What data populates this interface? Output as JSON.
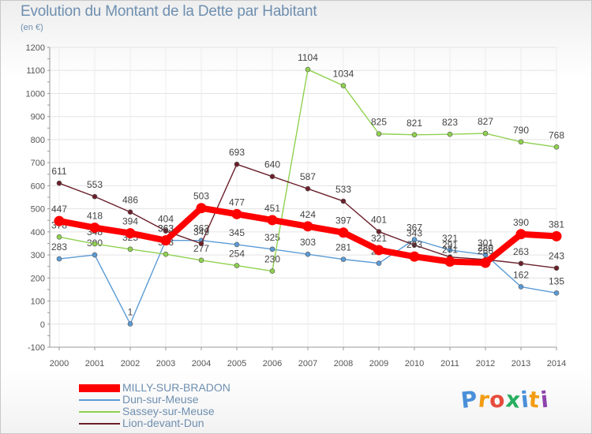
{
  "title": "Evolution du Montant de la Dette par Habitant",
  "unit_label": "(en €)",
  "chart_data": {
    "type": "line",
    "title": "Evolution du Montant de la Dette par Habitant",
    "ylabel": "(en €)",
    "xlabel": "",
    "x": [
      "2000",
      "2001",
      "2002",
      "2003",
      "2004",
      "2005",
      "2006",
      "2007",
      "2008",
      "2009",
      "2010",
      "2011",
      "2012",
      "2013",
      "2014"
    ],
    "ylim": [
      -100,
      1200
    ],
    "yticks": [
      -100,
      0,
      100,
      200,
      300,
      400,
      500,
      600,
      700,
      800,
      900,
      1000,
      1100,
      1200
    ],
    "grid": true,
    "legend_position": "bottom-left",
    "series": [
      {
        "name": "MILLY-SUR-BRADON",
        "color": "#ff0000",
        "values": [
          447,
          418,
          394,
          363,
          503,
          477,
          451,
          424,
          397,
          321,
          293,
          271,
          266,
          390,
          381
        ]
      },
      {
        "name": "Dun-sur-Meuse",
        "color": "#5b9bd5",
        "values": [
          283,
          300,
          1,
          363,
          363,
          345,
          325,
          303,
          281,
          264,
          367,
          321,
          301,
          162,
          135
        ]
      },
      {
        "name": "Sassey-sur-Meuse",
        "color": "#8fd14f",
        "values": [
          378,
          348,
          325,
          303,
          277,
          254,
          230,
          1104,
          1034,
          825,
          821,
          823,
          827,
          790,
          768
        ]
      },
      {
        "name": "Lion-devant-Dun",
        "color": "#6b1f2a",
        "values": [
          611,
          553,
          486,
          404,
          349,
          693,
          640,
          587,
          533,
          401,
          343,
          291,
          280,
          263,
          243
        ]
      }
    ]
  },
  "logo": {
    "text": "Proxiti",
    "colors": [
      "#4a90d9",
      "#f39c12",
      "#e74c3c",
      "#27ae60",
      "#4a90d9",
      "#f39c12",
      "#8e44ad"
    ]
  }
}
